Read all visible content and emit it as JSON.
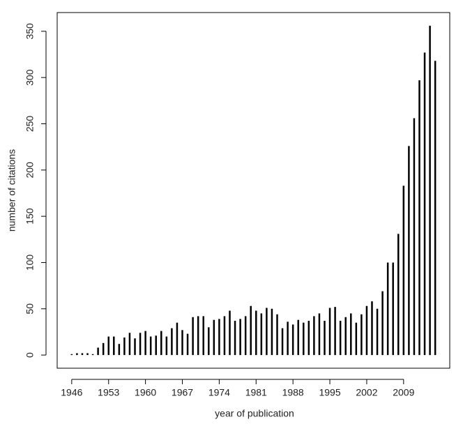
{
  "chart_data": {
    "type": "bar",
    "x_label": "year of publication",
    "y_label": "number of citations",
    "x": [
      1946,
      1947,
      1948,
      1949,
      1950,
      1951,
      1952,
      1953,
      1954,
      1955,
      1956,
      1957,
      1958,
      1959,
      1960,
      1961,
      1962,
      1963,
      1964,
      1965,
      1966,
      1967,
      1968,
      1969,
      1970,
      1971,
      1972,
      1973,
      1974,
      1975,
      1976,
      1977,
      1978,
      1979,
      1980,
      1981,
      1982,
      1983,
      1984,
      1985,
      1986,
      1987,
      1988,
      1989,
      1990,
      1991,
      1992,
      1993,
      1994,
      1995,
      1996,
      1997,
      1998,
      1999,
      2000,
      2001,
      2002,
      2003,
      2004,
      2005,
      2006,
      2007,
      2008,
      2009,
      2010,
      2011,
      2012,
      2013,
      2014,
      2015
    ],
    "values": [
      1,
      2,
      2,
      2,
      1,
      8,
      13,
      20,
      20,
      12,
      19,
      24,
      18,
      24,
      26,
      20,
      21,
      26,
      20,
      29,
      35,
      27,
      23,
      41,
      42,
      42,
      30,
      38,
      39,
      42,
      48,
      37,
      39,
      42,
      53,
      48,
      45,
      51,
      50,
      44,
      29,
      36,
      33,
      38,
      35,
      37,
      42,
      45,
      37,
      51,
      52,
      37,
      41,
      45,
      35,
      44,
      53,
      58,
      50,
      69,
      100,
      100,
      131,
      183,
      226,
      256,
      297,
      327,
      356,
      318
    ],
    "color": "#000000",
    "xlim": [
      1943.24,
      2017.76
    ],
    "xticks": [
      1946,
      1953,
      1960,
      1967,
      1974,
      1981,
      1988,
      1995,
      2002,
      2009
    ],
    "ylim": [
      -14.24,
      370.24
    ],
    "yticks": [
      0,
      50,
      100,
      150,
      200,
      250,
      300,
      350
    ]
  }
}
